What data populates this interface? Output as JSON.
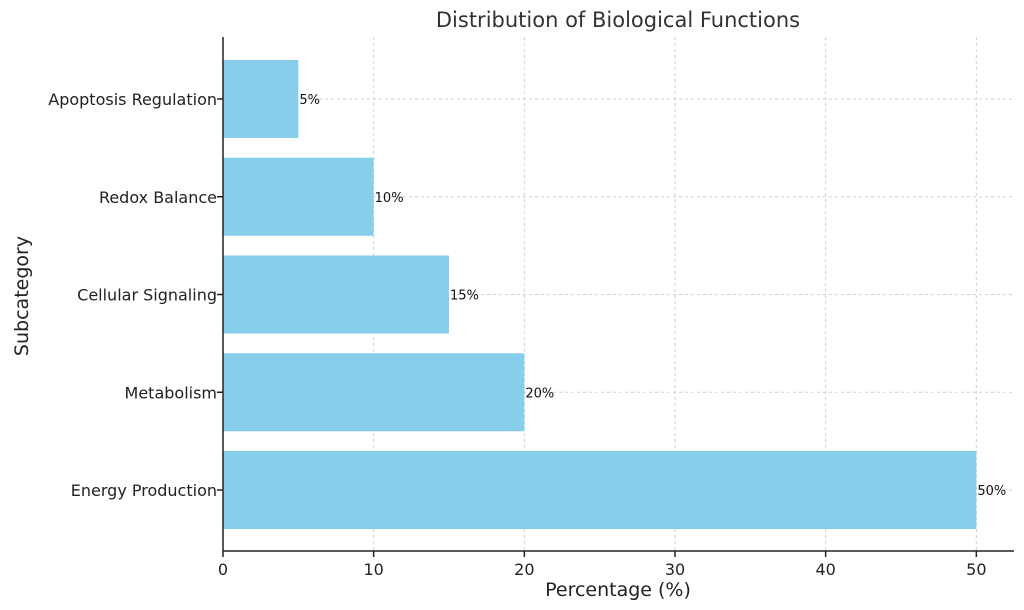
{
  "chart_data": {
    "type": "bar",
    "orientation": "horizontal",
    "title": "Distribution of Biological Functions",
    "xlabel": "Percentage (%)",
    "ylabel": "Subcategory",
    "categories": [
      "Energy Production",
      "Metabolism",
      "Cellular Signaling",
      "Redox Balance",
      "Apoptosis Regulation"
    ],
    "values": [
      50,
      20,
      15,
      10,
      5
    ],
    "data_labels": [
      "50%",
      "20%",
      "15%",
      "10%",
      "5%"
    ],
    "xlim": [
      0,
      52.5
    ],
    "xticks": [
      0,
      10,
      20,
      30,
      40,
      50
    ],
    "grid": true,
    "bar_color": "#87CEEB"
  }
}
